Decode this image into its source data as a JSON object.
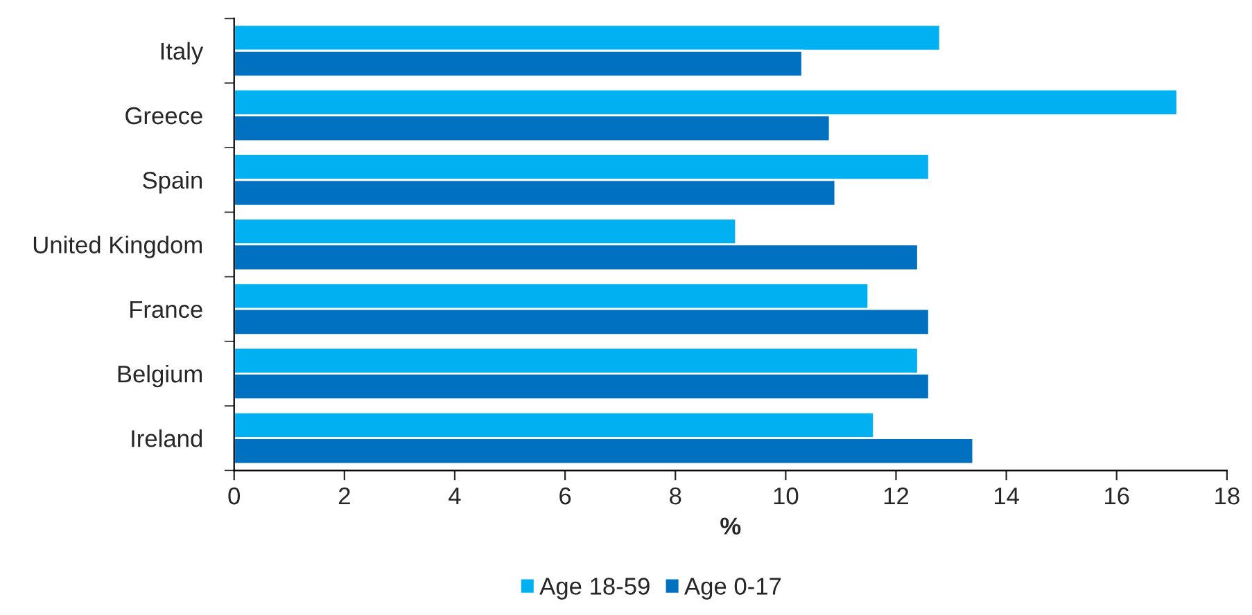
{
  "chart_data": {
    "type": "bar",
    "orientation": "horizontal",
    "xlabel": "%",
    "categories": [
      "Italy",
      "Greece",
      "Spain",
      "United Kingdom",
      "France",
      "Belgium",
      "Ireland"
    ],
    "series": [
      {
        "name": "Age 18-59",
        "color": "#00b0f0",
        "values": [
          12.8,
          17.1,
          12.6,
          9.1,
          11.5,
          12.4,
          11.6
        ]
      },
      {
        "name": "Age 0-17",
        "color": "#0070c0",
        "values": [
          10.3,
          10.8,
          10.9,
          12.4,
          12.6,
          12.6,
          13.4
        ]
      }
    ],
    "xlim": [
      0,
      18
    ],
    "xticks": [
      0,
      2,
      4,
      6,
      8,
      10,
      12,
      14,
      16,
      18
    ],
    "grid": false,
    "legend": "bottom"
  }
}
